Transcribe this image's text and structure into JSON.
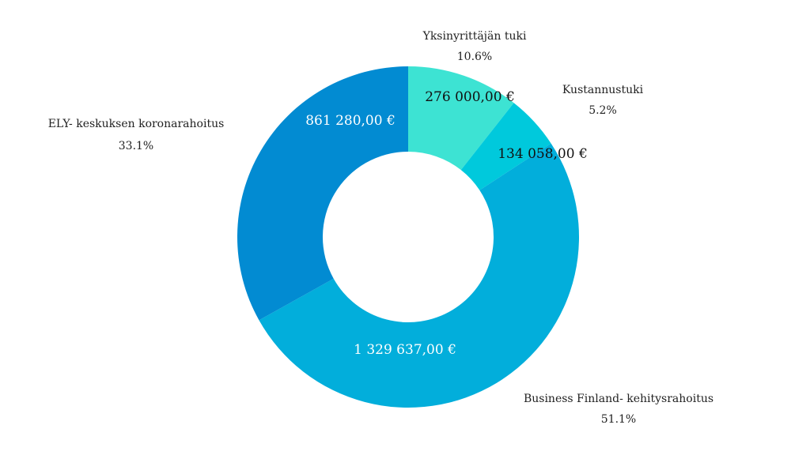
{
  "chart_data": {
    "type": "pie",
    "variant": "donut",
    "title": "",
    "slices": [
      {
        "label": "Yksinyrittäjän tuki",
        "value": 276000.0,
        "value_label": "276 000,00 €",
        "percent_label": "10.6%",
        "color": "#3de3d3",
        "value_text_color": "#111111"
      },
      {
        "label": "Kustannustuki",
        "value": 134058.0,
        "value_label": "134 058,00 €",
        "percent_label": "5.2%",
        "color": "#00c9dc",
        "value_text_color": "#111111"
      },
      {
        "label": "Business Finland- kehitysrahoitus",
        "value": 1329637.0,
        "value_label": "1 329 637,00 €",
        "percent_label": "51.1%",
        "color": "#02aedb",
        "value_text_color": "#ffffff"
      },
      {
        "label": "ELY- keskuksen koronarahoitus",
        "value": 861280.0,
        "value_label": "861 280,00 €",
        "percent_label": "33.1%",
        "color": "#028bd2",
        "value_text_color": "#ffffff"
      }
    ]
  }
}
